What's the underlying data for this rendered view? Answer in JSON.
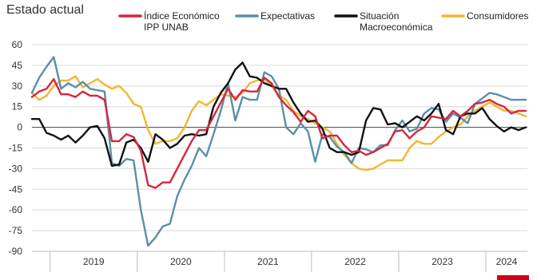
{
  "colors": {
    "index": "#d7263d",
    "expectativas": "#5b8fa8",
    "situacion": "#111111",
    "consumidores": "#f2b632",
    "accent": "#d0021b"
  },
  "chart_data": {
    "type": "line",
    "title": "Estado actual",
    "xlabel": "",
    "ylabel": "",
    "ylim": [
      -90,
      60
    ],
    "yticks": [
      60,
      45,
      30,
      15,
      0,
      -15,
      -30,
      -45,
      -60,
      -75,
      -90
    ],
    "year_labels": [
      "2019",
      "2020",
      "2021",
      "2022",
      "2023",
      "2024"
    ],
    "grid": true,
    "legend": "top",
    "x": [
      "2018-10",
      "2018-11",
      "2018-12",
      "2019-01",
      "2019-02",
      "2019-03",
      "2019-04",
      "2019-05",
      "2019-06",
      "2019-07",
      "2019-08",
      "2019-09",
      "2019-10",
      "2019-11",
      "2019-12",
      "2020-01",
      "2020-02",
      "2020-03",
      "2020-04",
      "2020-05",
      "2020-06",
      "2020-07",
      "2020-08",
      "2020-09",
      "2020-10",
      "2020-11",
      "2020-12",
      "2021-01",
      "2021-02",
      "2021-03",
      "2021-04",
      "2021-05",
      "2021-06",
      "2021-07",
      "2021-08",
      "2021-09",
      "2021-10",
      "2021-11",
      "2021-12",
      "2022-01",
      "2022-02",
      "2022-03",
      "2022-04",
      "2022-05",
      "2022-06",
      "2022-07",
      "2022-08",
      "2022-09",
      "2022-10",
      "2022-11",
      "2022-12",
      "2023-01",
      "2023-02",
      "2023-03",
      "2023-04",
      "2023-05",
      "2023-06",
      "2023-07",
      "2023-08",
      "2023-09",
      "2023-10",
      "2023-11",
      "2023-12",
      "2024-01",
      "2024-02",
      "2024-03",
      "2024-04",
      "2024-05",
      "2024-06"
    ],
    "series": [
      {
        "name": "Índice Económico\nIPP UNAB",
        "legend_lines": [
          "Índice Económico",
          "IPP UNAB"
        ],
        "color_key": "index",
        "values": [
          22,
          26,
          28,
          35,
          24,
          24,
          22,
          26,
          23,
          23,
          20,
          -10,
          -10,
          -5,
          -7,
          -17,
          -42,
          -44,
          -40,
          -40,
          -30,
          -20,
          -10,
          -2,
          -2,
          8,
          18,
          28,
          20,
          27,
          26,
          26,
          36,
          32,
          22,
          16,
          11,
          4,
          12,
          8,
          -8,
          -6,
          -6,
          -13,
          -18,
          -17,
          -20,
          -18,
          -15,
          -12,
          -3,
          -2,
          -8,
          -3,
          0,
          8,
          7,
          6,
          12,
          8,
          12,
          17,
          18,
          20,
          17,
          15,
          10,
          12,
          12
        ]
      },
      {
        "name": "Expectativas",
        "legend_lines": [
          "Expectativas"
        ],
        "color_key": "expectativas",
        "values": [
          25,
          36,
          44,
          51,
          28,
          32,
          29,
          33,
          28,
          27,
          26,
          -26,
          -28,
          -23,
          -24,
          -60,
          -86,
          -80,
          -72,
          -70,
          -50,
          -38,
          -28,
          -15,
          -21,
          -5,
          12,
          32,
          5,
          22,
          20,
          20,
          40,
          37,
          28,
          0,
          -5,
          3,
          -3,
          -25,
          -5,
          -7,
          -14,
          -18,
          -26,
          -15,
          -16,
          -18,
          -13,
          -13,
          -2,
          5,
          -3,
          -1,
          10,
          14,
          13,
          4,
          10,
          7,
          3,
          17,
          21,
          25,
          24,
          22,
          20,
          20,
          20
        ]
      },
      {
        "name": "Situación\nMacroeconómica",
        "legend_lines": [
          "Situación",
          "Macroeconómica"
        ],
        "color_key": "situacion",
        "values": [
          6,
          6,
          -4,
          -6,
          -9,
          -6,
          -11,
          -6,
          0,
          1,
          -8,
          -28,
          -27,
          -11,
          -9,
          -15,
          -25,
          -5,
          -9,
          -15,
          -12,
          -6,
          -5,
          -6,
          -5,
          15,
          25,
          32,
          42,
          47,
          37,
          36,
          32,
          30,
          28,
          28,
          18,
          10,
          4,
          5,
          -1,
          -15,
          -18,
          -18,
          -20,
          -18,
          5,
          14,
          13,
          2,
          3,
          0,
          4,
          8,
          5,
          10,
          17,
          -2,
          -5,
          8,
          10,
          10,
          14,
          6,
          1,
          -3,
          0,
          -2,
          0
        ]
      },
      {
        "name": "Consumidores",
        "legend_lines": [
          "Consumidores"
        ],
        "color_key": "consumidores",
        "values": [
          25,
          20,
          23,
          30,
          34,
          34,
          37,
          29,
          32,
          35,
          31,
          28,
          30,
          25,
          17,
          15,
          -2,
          -12,
          -10,
          -10,
          -8,
          0,
          12,
          19,
          16,
          20,
          24,
          23,
          22,
          25,
          32,
          34,
          35,
          30,
          23,
          20,
          12,
          8,
          6,
          3,
          0,
          -3,
          -12,
          -20,
          -26,
          -30,
          -31,
          -30,
          -27,
          -24,
          -24,
          -24,
          -15,
          -10,
          -12,
          -12,
          -7,
          -3,
          0,
          2,
          8,
          12,
          15,
          18,
          15,
          12,
          12,
          10,
          8
        ]
      }
    ]
  }
}
